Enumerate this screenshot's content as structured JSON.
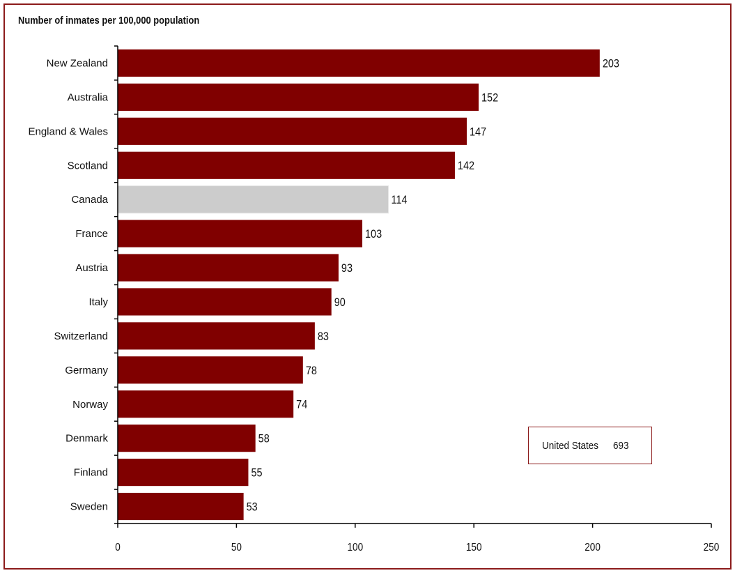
{
  "chart_data": {
    "type": "bar",
    "orientation": "horizontal",
    "title": "Number of inmates per 100,000 population",
    "categories": [
      "New Zealand",
      "Australia",
      "England & Wales",
      "Scotland",
      "Canada",
      "France",
      "Austria",
      "Italy",
      "Switzerland",
      "Germany",
      "Norway",
      "Denmark",
      "Finland",
      "Sweden"
    ],
    "values": [
      203,
      152,
      147,
      142,
      114,
      103,
      93,
      90,
      83,
      78,
      74,
      58,
      55,
      53
    ],
    "highlight": "Canada",
    "colors": {
      "bar": "#800000",
      "highlight": "#cccccc",
      "frame": "#8b1a1a"
    },
    "xlim": [
      0,
      250
    ],
    "xticks": [
      0,
      50,
      100,
      150,
      200,
      250
    ],
    "grid": false,
    "annotation": {
      "label": "United States",
      "value": "693"
    }
  }
}
